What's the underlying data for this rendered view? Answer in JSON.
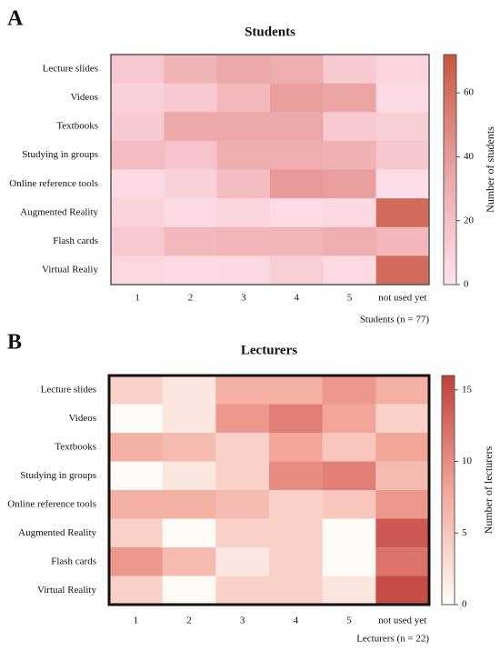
{
  "chart_data": [
    {
      "type": "heatmap",
      "panel": "A",
      "title": "Students",
      "categories": [
        "1",
        "2",
        "3",
        "4",
        "5",
        "not used yet"
      ],
      "rows": [
        "Lecture slides",
        "Videos",
        "Textbooks",
        "Studying in groups",
        "Online reference tools",
        "Augmented Reality",
        "Flash cards",
        "Virtual Realiy"
      ],
      "values": [
        [
          15,
          27,
          33,
          30,
          14,
          8
        ],
        [
          10,
          15,
          24,
          38,
          35,
          5
        ],
        [
          14,
          33,
          33,
          33,
          14,
          12
        ],
        [
          22,
          18,
          30,
          30,
          28,
          16
        ],
        [
          5,
          10,
          22,
          40,
          38,
          3
        ],
        [
          9,
          5,
          8,
          4,
          6,
          62
        ],
        [
          14,
          24,
          26,
          26,
          30,
          24
        ],
        [
          7,
          5,
          6,
          12,
          5,
          62
        ]
      ],
      "xlabel": "Students (n = 77)",
      "colorbar_label": "Number of students",
      "clim": [
        0,
        72
      ],
      "cticks": [
        0,
        20,
        40,
        60
      ],
      "colors": [
        "#ffe3ee",
        "#eba3a3",
        "#c8553d"
      ]
    },
    {
      "type": "heatmap",
      "panel": "B",
      "title": "Lecturers",
      "categories": [
        "1",
        "2",
        "3",
        "4",
        "5",
        "not used yet"
      ],
      "rows": [
        "Lecture slides",
        "Videos",
        "Textbooks",
        "Studying in groups",
        "Online reference tools",
        "Augmented Reality",
        "Flash cards",
        "Virtual Reality"
      ],
      "values": [
        [
          4,
          2,
          7,
          7,
          9,
          7
        ],
        [
          0,
          2,
          9,
          11,
          8,
          4
        ],
        [
          7,
          6,
          4,
          8,
          5,
          8
        ],
        [
          0,
          2,
          4,
          10,
          11,
          6
        ],
        [
          7,
          7,
          6,
          4,
          5,
          9
        ],
        [
          4,
          0,
          4,
          4,
          0,
          14
        ],
        [
          9,
          6,
          2,
          4,
          0,
          12
        ],
        [
          4,
          0,
          4,
          4,
          2,
          15
        ]
      ],
      "xlabel": "Lecturers (n = 22)",
      "colorbar_label": "Number of lecturers",
      "clim": [
        0,
        16
      ],
      "cticks": [
        0,
        5,
        10,
        15
      ],
      "colors": [
        "#fffcf8",
        "#f3a598",
        "#c0403a"
      ]
    }
  ]
}
